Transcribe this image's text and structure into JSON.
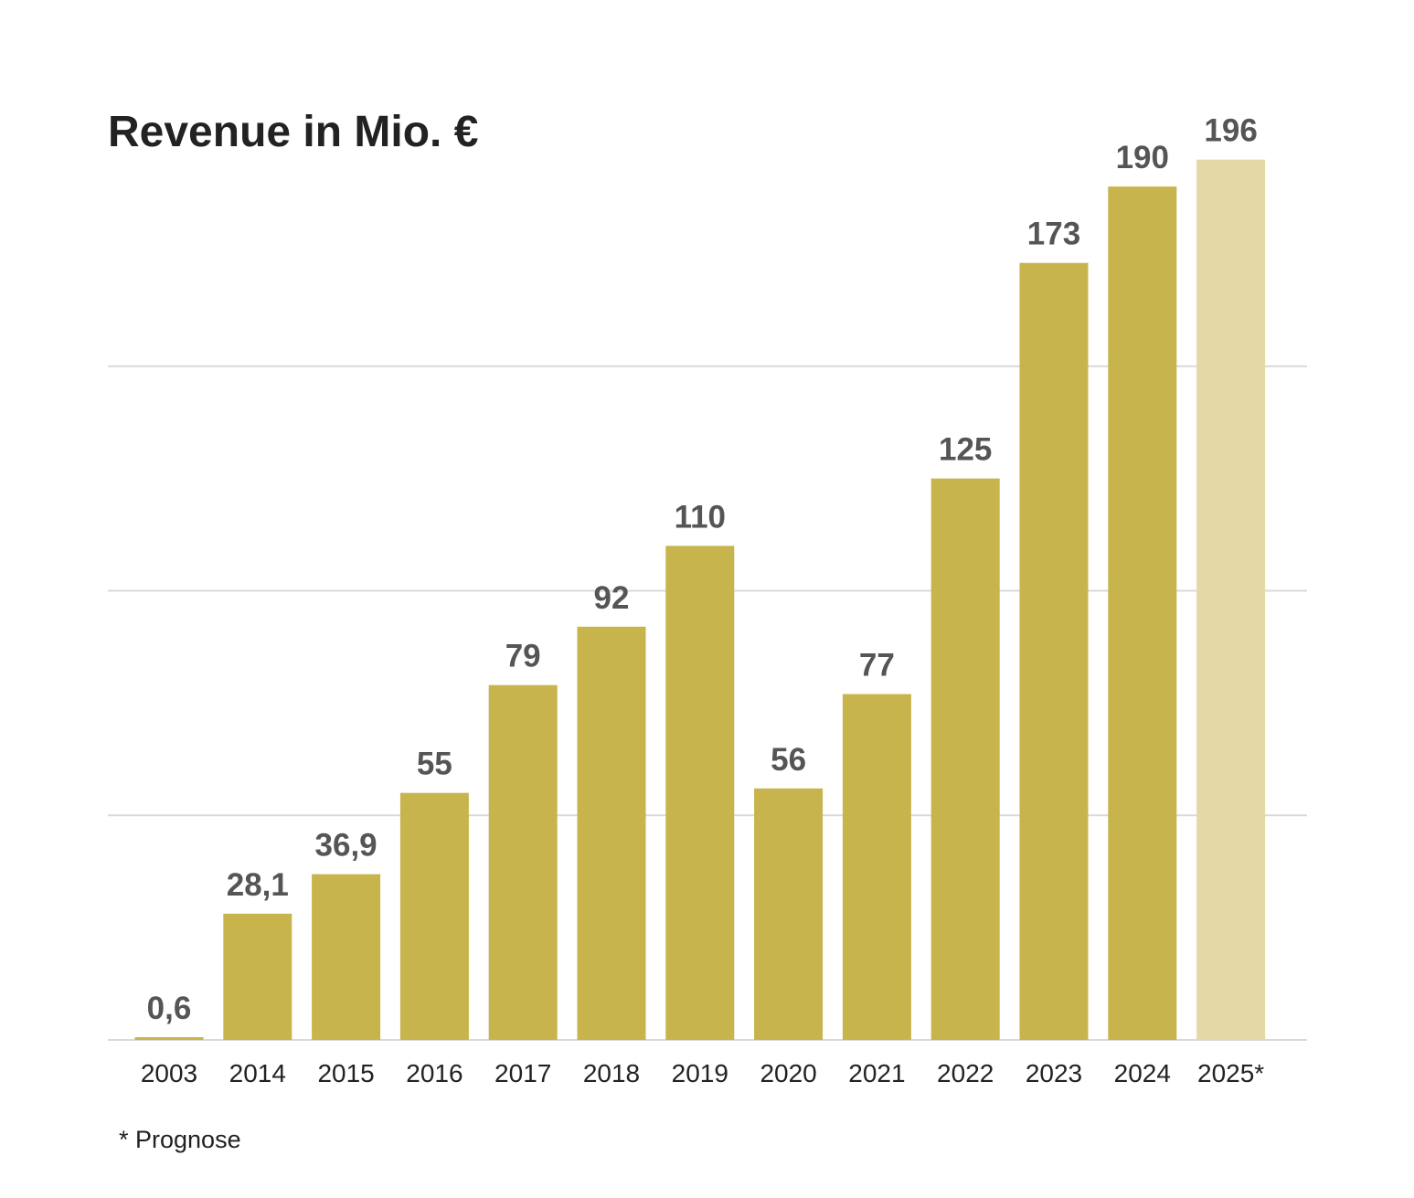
{
  "chart_data": {
    "type": "bar",
    "title": "Revenue in Mio. €",
    "categories": [
      "2003",
      "2014",
      "2015",
      "2016",
      "2017",
      "2018",
      "2019",
      "2020",
      "2021",
      "2022",
      "2023",
      "2024",
      "2025*"
    ],
    "values": [
      0.6,
      28.1,
      36.9,
      55,
      79,
      92,
      110,
      56,
      77,
      125,
      173,
      190,
      196
    ],
    "value_labels": [
      "0,6",
      "28,1",
      "36,9",
      "55",
      "79",
      "92",
      "110",
      "56",
      "77",
      "125",
      "173",
      "190",
      "196"
    ],
    "forecast": [
      false,
      false,
      false,
      false,
      false,
      false,
      false,
      false,
      false,
      false,
      false,
      false,
      true
    ],
    "xlabel": "",
    "ylabel": "",
    "ylim": [
      0,
      200
    ],
    "gridlines": [
      0,
      50,
      100,
      150
    ],
    "grid": true,
    "footnote": "* Prognose"
  },
  "colors": {
    "bar": "#c8b44c",
    "bar_forecast": "#e4d8a5",
    "grid": "#d9d9d9",
    "value_label": "#555555",
    "text": "#222222"
  }
}
